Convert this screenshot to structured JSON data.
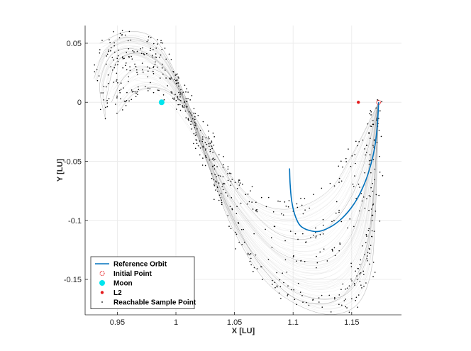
{
  "chart_data": {
    "type": "scatter",
    "title": "",
    "xlabel": "X [LU]",
    "ylabel": "Y [LU]",
    "xlim": [
      0.9225,
      1.1925
    ],
    "ylim": [
      -0.18,
      0.065
    ],
    "xticks": [
      0.95,
      1,
      1.05,
      1.1,
      1.15
    ],
    "xtick_labels": [
      "0.95",
      "1",
      "1.05",
      "1.1",
      "1.15"
    ],
    "yticks": [
      0.05,
      0,
      -0.05,
      -0.1,
      -0.15
    ],
    "ytick_labels": [
      "0.05",
      "0",
      "-0.05",
      "-0.1",
      "-0.15"
    ],
    "grid": true,
    "legend_position": "bottom-left",
    "colors": {
      "reference": "#0072BD",
      "initial": "#E41A1C",
      "moon": "#00E5EE",
      "l2": "#E41A1C",
      "samples": "#000000",
      "fan": "#9a9a9a"
    },
    "series": [
      {
        "name": "Reference Orbit",
        "kind": "line",
        "points": [
          [
            1.173,
            0.0
          ],
          [
            1.172,
            -0.018
          ],
          [
            1.17,
            -0.036
          ],
          [
            1.166,
            -0.054
          ],
          [
            1.16,
            -0.071
          ],
          [
            1.152,
            -0.086
          ],
          [
            1.142,
            -0.098
          ],
          [
            1.131,
            -0.106
          ],
          [
            1.12,
            -0.1095
          ],
          [
            1.108,
            -0.106
          ],
          [
            1.1025,
            -0.098
          ],
          [
            1.099,
            -0.085
          ],
          [
            1.0975,
            -0.07
          ],
          [
            1.097,
            -0.056
          ]
        ]
      },
      {
        "name": "Initial Point",
        "kind": "marker",
        "points": [
          [
            1.173,
            0.0
          ]
        ]
      },
      {
        "name": "Moon",
        "kind": "marker",
        "points": [
          [
            0.9878,
            0.0
          ]
        ]
      },
      {
        "name": "L2",
        "kind": "marker",
        "points": [
          [
            1.1557,
            0.0
          ]
        ]
      },
      {
        "name": "Reachable Sample Point",
        "kind": "scatter",
        "points": []
      }
    ],
    "fan_trajectories": [
      [
        [
          1.173,
          0.0
        ],
        [
          1.16,
          -0.08
        ],
        [
          1.145,
          -0.12
        ],
        [
          1.12,
          -0.135
        ],
        [
          1.085,
          -0.125
        ],
        [
          1.05,
          -0.085
        ],
        [
          1.03,
          -0.05
        ],
        [
          1.01,
          -0.005
        ],
        [
          0.99,
          0.03
        ],
        [
          0.965,
          0.045
        ],
        [
          0.945,
          0.04
        ],
        [
          0.935,
          0.015
        ],
        [
          0.94,
          -0.015
        ]
      ],
      [
        [
          1.173,
          0.0
        ],
        [
          1.168,
          -0.09
        ],
        [
          1.16,
          -0.14
        ],
        [
          1.14,
          -0.165
        ],
        [
          1.1,
          -0.16
        ],
        [
          1.06,
          -0.12
        ],
        [
          1.035,
          -0.07
        ],
        [
          1.015,
          -0.02
        ],
        [
          0.99,
          0.04
        ],
        [
          0.96,
          0.055
        ],
        [
          0.94,
          0.045
        ],
        [
          0.93,
          0.02
        ]
      ],
      [
        [
          1.173,
          0.0
        ],
        [
          1.158,
          -0.06
        ],
        [
          1.14,
          -0.095
        ],
        [
          1.115,
          -0.115
        ],
        [
          1.085,
          -0.11
        ],
        [
          1.055,
          -0.08
        ],
        [
          1.035,
          -0.045
        ],
        [
          1.015,
          -0.01
        ],
        [
          0.995,
          0.02
        ],
        [
          0.97,
          0.03
        ],
        [
          0.955,
          0.02
        ],
        [
          0.945,
          0.0
        ]
      ],
      [
        [
          1.173,
          0.0
        ],
        [
          1.17,
          -0.1
        ],
        [
          1.165,
          -0.15
        ],
        [
          1.15,
          -0.175
        ],
        [
          1.12,
          -0.178
        ],
        [
          1.08,
          -0.155
        ],
        [
          1.05,
          -0.11
        ],
        [
          1.03,
          -0.06
        ],
        [
          1.01,
          0.0
        ],
        [
          0.985,
          0.05
        ],
        [
          0.96,
          0.06
        ],
        [
          0.935,
          0.05
        ]
      ],
      [
        [
          1.173,
          0.0
        ],
        [
          1.15,
          -0.045
        ],
        [
          1.13,
          -0.075
        ],
        [
          1.1,
          -0.09
        ],
        [
          1.07,
          -0.085
        ],
        [
          1.045,
          -0.06
        ],
        [
          1.025,
          -0.03
        ],
        [
          1.005,
          0.0
        ],
        [
          0.985,
          0.012
        ],
        [
          0.965,
          0.008
        ],
        [
          0.95,
          -0.01
        ]
      ],
      [
        [
          1.173,
          0.0
        ],
        [
          1.169,
          -0.07
        ],
        [
          1.163,
          -0.12
        ],
        [
          1.15,
          -0.155
        ],
        [
          1.13,
          -0.17
        ],
        [
          1.1,
          -0.165
        ],
        [
          1.07,
          -0.135
        ],
        [
          1.045,
          -0.09
        ],
        [
          1.025,
          -0.04
        ],
        [
          1.0,
          0.015
        ],
        [
          0.975,
          0.04
        ],
        [
          0.95,
          0.035
        ],
        [
          0.94,
          0.0
        ]
      ]
    ]
  }
}
